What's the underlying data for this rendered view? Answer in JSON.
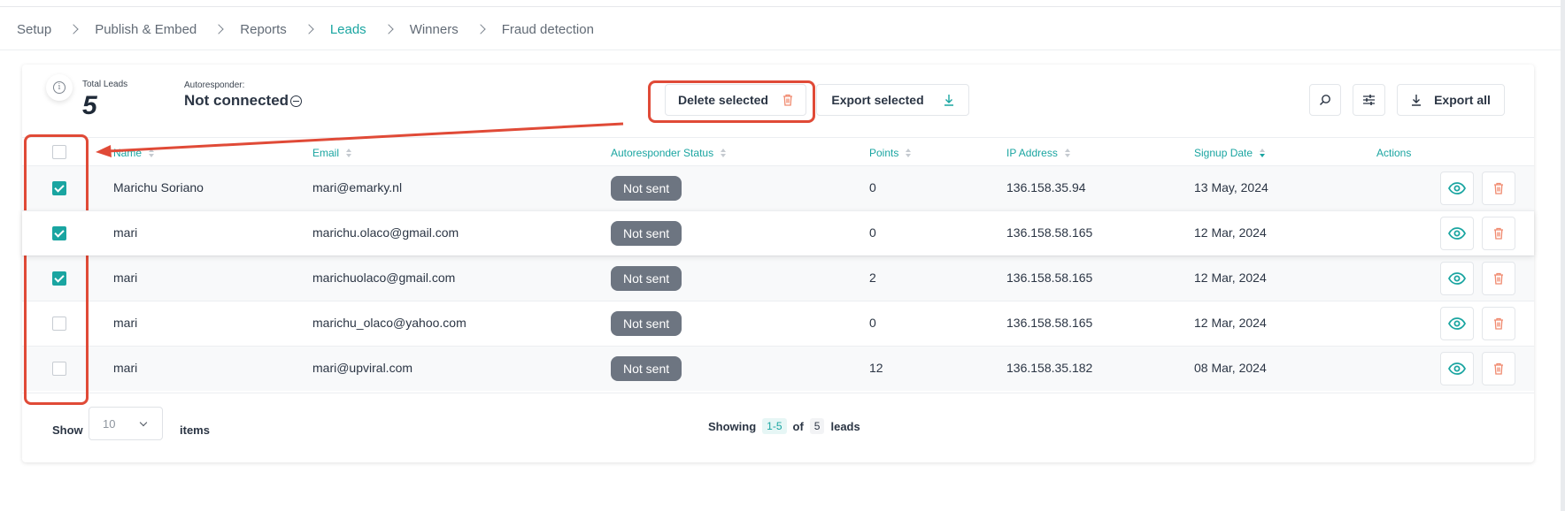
{
  "breadcrumb": [
    {
      "label": "Setup",
      "active": false
    },
    {
      "label": "Publish & Embed",
      "active": false
    },
    {
      "label": "Reports",
      "active": false
    },
    {
      "label": "Leads",
      "active": true
    },
    {
      "label": "Winners",
      "active": false
    },
    {
      "label": "Fraud detection",
      "active": false
    }
  ],
  "summary": {
    "total_leads_label": "Total Leads",
    "total_leads_value": "5",
    "autoresponder_label": "Autoresponder:",
    "autoresponder_value": "Not connected"
  },
  "toolbar": {
    "delete_selected": "Delete selected",
    "export_selected": "Export selected",
    "export_all": "Export all"
  },
  "table": {
    "columns": {
      "name": "Name",
      "email": "Email",
      "autoresponder_status": "Autoresponder Status",
      "points": "Points",
      "ip_address": "IP Address",
      "signup_date": "Signup Date",
      "actions": "Actions"
    },
    "rows": [
      {
        "checked": true,
        "name": "Marichu Soriano",
        "email": "mari@emarky.nl",
        "status": "Not sent",
        "points": "0",
        "ip": "136.158.35.94",
        "date": "13 May, 2024"
      },
      {
        "checked": true,
        "name": "mari",
        "email": "marichu.olaco@gmail.com",
        "status": "Not sent",
        "points": "0",
        "ip": "136.158.58.165",
        "date": "12 Mar, 2024"
      },
      {
        "checked": true,
        "name": "mari",
        "email": "marichuolaco@gmail.com",
        "status": "Not sent",
        "points": "2",
        "ip": "136.158.58.165",
        "date": "12 Mar, 2024"
      },
      {
        "checked": false,
        "name": "mari",
        "email": "marichu_olaco@yahoo.com",
        "status": "Not sent",
        "points": "0",
        "ip": "136.158.58.165",
        "date": "12 Mar, 2024"
      },
      {
        "checked": false,
        "name": "mari",
        "email": "mari@upviral.com",
        "status": "Not sent",
        "points": "12",
        "ip": "136.158.35.182",
        "date": "08 Mar, 2024"
      }
    ]
  },
  "footer": {
    "show_label": "Show",
    "page_size": "10",
    "items_label": "items",
    "showing_label": "Showing",
    "range": "1-5",
    "of_label": "of",
    "total": "5",
    "leads_label": "leads"
  },
  "colors": {
    "accent": "#1aa5a1",
    "danger": "#e04a37",
    "pill": "#6d7581",
    "delete_icon": "#f08a6f"
  }
}
